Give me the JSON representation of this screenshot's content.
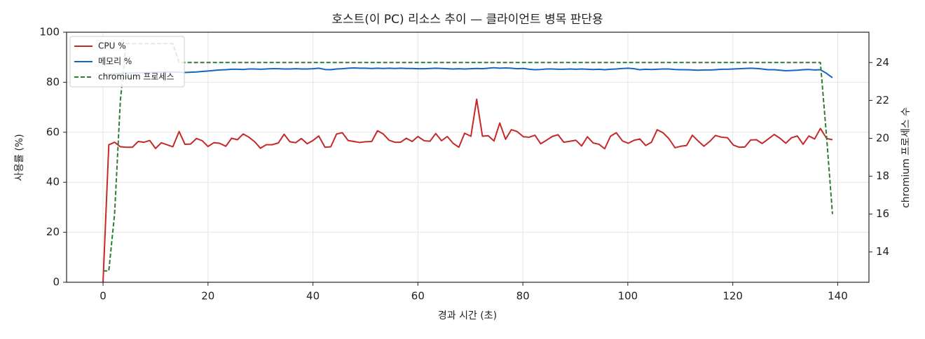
{
  "chart_data": {
    "type": "line",
    "title": "호스트(이 PC) 리소스 추이 — 클라이언트 병목 판단용",
    "xlabel": "경과 시간 (초)",
    "ylabel": "사용률 (%)",
    "y2label": "chromium 프로세스 수",
    "x": [
      0,
      1.1,
      2.2,
      3.3,
      4.4,
      5.6,
      6.7,
      7.8,
      8.9,
      10.0,
      11.1,
      12.2,
      13.3,
      14.5,
      15.6,
      16.7,
      17.8,
      18.9,
      20.0,
      21.1,
      22.2,
      23.4,
      24.5,
      25.6,
      26.7,
      27.8,
      28.9,
      30.0,
      31.1,
      32.2,
      33.4,
      34.5,
      35.6,
      36.7,
      37.8,
      38.9,
      40.0,
      41.1,
      42.3,
      43.4,
      44.5,
      45.6,
      46.7,
      47.8,
      48.9,
      50.0,
      51.2,
      52.3,
      53.4,
      54.5,
      55.6,
      56.7,
      57.8,
      58.9,
      60.0,
      61.2,
      62.3,
      63.4,
      64.5,
      65.6,
      66.7,
      67.8,
      68.9,
      70.1,
      71.2,
      72.3,
      73.4,
      74.5,
      75.6,
      76.7,
      77.8,
      78.9,
      80.1,
      81.2,
      82.3,
      83.4,
      84.5,
      85.6,
      86.7,
      87.8,
      89.0,
      90.1,
      91.2,
      92.3,
      93.4,
      94.5,
      95.6,
      96.7,
      97.8,
      99.0,
      100.1,
      101.2,
      102.3,
      103.4,
      104.5,
      105.6,
      106.7,
      107.8,
      109.0,
      110.1,
      111.2,
      112.3,
      113.4,
      114.5,
      115.6,
      116.7,
      117.9,
      119.0,
      120.1,
      121.2,
      122.3,
      123.4,
      124.5,
      125.6,
      126.7,
      127.9,
      129.0,
      130.1,
      131.2,
      132.3,
      133.4,
      134.5,
      135.6,
      136.7,
      137.9,
      139.0
    ],
    "series": [
      {
        "name": "CPU %",
        "color": "#c62828",
        "dash": false,
        "values": [
          0,
          55,
          56,
          54.2,
          54,
          54,
          56.3,
          56,
          56.7,
          53.5,
          55.8,
          55,
          54.2,
          60.3,
          55.2,
          55.3,
          57.5,
          56.6,
          54.3,
          55.8,
          55.6,
          54.4,
          57.6,
          57,
          59.3,
          58,
          56.2,
          53.6,
          55,
          55,
          55.7,
          59.2,
          56.2,
          55.8,
          57.5,
          55.4,
          56.7,
          58.5,
          54,
          54.2,
          59.3,
          59.8,
          56.7,
          56.3,
          55.9,
          56.2,
          56.3,
          60.6,
          59.3,
          56.8,
          56,
          56,
          57.6,
          56.3,
          58.3,
          56.6,
          56.4,
          59.5,
          56.6,
          58.3,
          55.6,
          54,
          59.6,
          58.4,
          73.2,
          58.4,
          58.6,
          56.5,
          63.7,
          57.2,
          61,
          60.3,
          58.2,
          58,
          58.8,
          55.4,
          56.8,
          58.3,
          59,
          56,
          56.4,
          56.8,
          54.5,
          58.2,
          55.7,
          55.2,
          53.4,
          58.4,
          59.8,
          56.5,
          55.6,
          56.8,
          57.3,
          54.7,
          56,
          61,
          59.8,
          57.5,
          53.8,
          54.4,
          54.7,
          58.8,
          56.5,
          54.4,
          56.3,
          58.7,
          58,
          57.8,
          54.9,
          54,
          54.1,
          56.9,
          57,
          55.5,
          57.2,
          59.1,
          57.6,
          55.6,
          57.8,
          58.5,
          55.2,
          58.5,
          57.3,
          61.5,
          57.5,
          57
        ]
      },
      {
        "name": "메모리 %",
        "color": "#1565c0",
        "dash": false,
        "values": [
          83.0,
          83.2,
          83.4,
          83.5,
          83.6,
          83.7,
          83.8,
          83.8,
          83.9,
          84.0,
          84.0,
          84.1,
          84.1,
          84.0,
          83.9,
          84.0,
          84.1,
          84.3,
          84.5,
          84.7,
          84.9,
          85.0,
          85.2,
          85.2,
          85.1,
          85.3,
          85.3,
          85.2,
          85.3,
          85.4,
          85.4,
          85.3,
          85.3,
          85.4,
          85.3,
          85.3,
          85.4,
          85.6,
          85.1,
          85.0,
          85.3,
          85.4,
          85.6,
          85.7,
          85.6,
          85.6,
          85.5,
          85.6,
          85.5,
          85.6,
          85.5,
          85.6,
          85.5,
          85.5,
          85.4,
          85.4,
          85.5,
          85.6,
          85.5,
          85.4,
          85.3,
          85.4,
          85.3,
          85.4,
          85.5,
          85.4,
          85.6,
          85.8,
          85.6,
          85.7,
          85.6,
          85.4,
          85.5,
          85.2,
          85.0,
          85.1,
          85.3,
          85.3,
          85.2,
          85.2,
          85.3,
          85.2,
          85.3,
          85.2,
          85.1,
          85.2,
          85.0,
          85.2,
          85.3,
          85.5,
          85.6,
          85.4,
          85.0,
          85.2,
          85.1,
          85.2,
          85.3,
          85.3,
          85.1,
          85.0,
          85.0,
          84.9,
          84.8,
          84.9,
          84.9,
          85.0,
          85.2,
          85.2,
          85.3,
          85.4,
          85.5,
          85.6,
          85.5,
          85.3,
          85.0,
          85.0,
          84.8,
          84.6,
          84.7,
          84.8,
          85.0,
          85.1,
          84.9,
          85.0,
          83.5,
          81.8
        ]
      },
      {
        "name": "chromium 프로세스",
        "color": "#2e7d32",
        "dash": true,
        "axis": "y2",
        "values": [
          13,
          13,
          16,
          22,
          25,
          25,
          25,
          25,
          25,
          25,
          25,
          25,
          25,
          24,
          24,
          24,
          24,
          24,
          24,
          24,
          24,
          24,
          24,
          24,
          24,
          24,
          24,
          24,
          24,
          24,
          24,
          24,
          24,
          24,
          24,
          24,
          24,
          24,
          24,
          24,
          24,
          24,
          24,
          24,
          24,
          24,
          24,
          24,
          24,
          24,
          24,
          24,
          24,
          24,
          24,
          24,
          24,
          24,
          24,
          24,
          24,
          24,
          24,
          24,
          24,
          24,
          24,
          24,
          24,
          24,
          24,
          24,
          24,
          24,
          24,
          24,
          24,
          24,
          24,
          24,
          24,
          24,
          24,
          24,
          24,
          24,
          24,
          24,
          24,
          24,
          24,
          24,
          24,
          24,
          24,
          24,
          24,
          24,
          24,
          24,
          24,
          24,
          24,
          24,
          24,
          24,
          24,
          24,
          24,
          24,
          24,
          24,
          24,
          24,
          24,
          24,
          24,
          24,
          24,
          24,
          24,
          24,
          24,
          24,
          20,
          16
        ]
      }
    ],
    "xlim": [
      -6.95,
      145.95
    ],
    "xticks": [
      0,
      20,
      40,
      60,
      80,
      100,
      120,
      140
    ],
    "ylim": [
      0,
      100
    ],
    "yticks": [
      0,
      20,
      40,
      60,
      80,
      100
    ],
    "y2lim": [
      12.4,
      25.6
    ],
    "y2ticks": [
      14,
      16,
      18,
      20,
      22,
      24
    ],
    "grid": true,
    "legend": "upper-left"
  }
}
